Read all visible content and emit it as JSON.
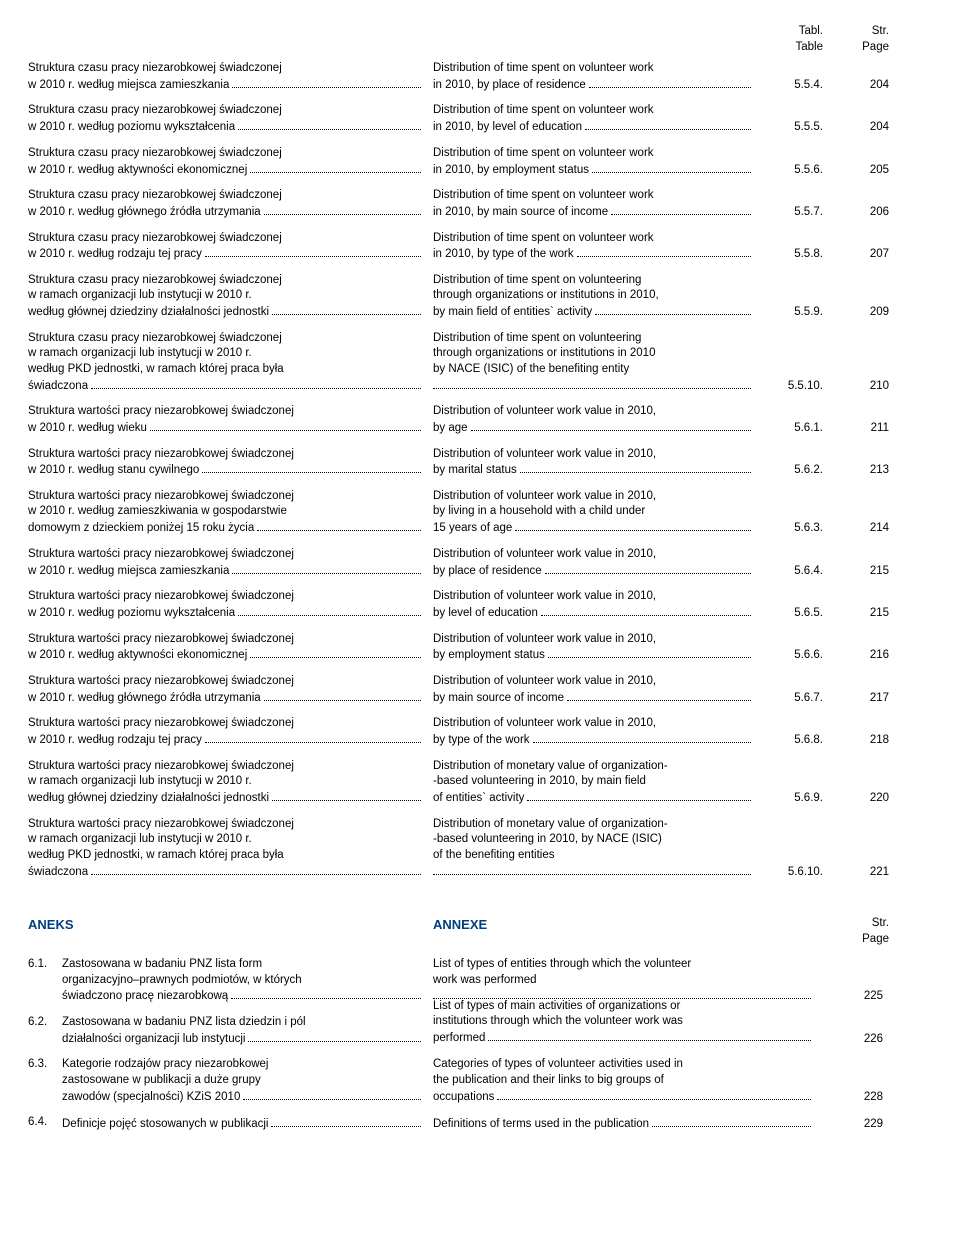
{
  "header": {
    "tabl_top": "Tabl.",
    "tabl_bot": "Table",
    "str_top": "Str.",
    "str_bot": "Page"
  },
  "rows": [
    {
      "left": [
        "Struktura czasu pracy niezarobkowej świadczonej",
        "w 2010 r. według miejsca zamieszkania"
      ],
      "right": [
        "Distribution of time spent on volunteer work",
        "in 2010, by place of residence"
      ],
      "tabl": "5.5.4.",
      "page": "204"
    },
    {
      "left": [
        "Struktura czasu pracy niezarobkowej świadczonej",
        "w 2010 r. według poziomu wykształcenia"
      ],
      "right": [
        "Distribution of time spent on volunteer work",
        "in 2010, by level of education"
      ],
      "tabl": "5.5.5.",
      "page": "204"
    },
    {
      "left": [
        "Struktura czasu pracy niezarobkowej świadczonej",
        "w 2010 r. według aktywności ekonomicznej"
      ],
      "right": [
        "Distribution of time spent on volunteer work",
        "in 2010, by employment status"
      ],
      "tabl": "5.5.6.",
      "page": "205"
    },
    {
      "left": [
        "Struktura czasu pracy niezarobkowej świadczonej",
        "w 2010 r. według głównego źródła utrzymania"
      ],
      "right": [
        "Distribution of time spent on volunteer work",
        "in 2010, by main source of income"
      ],
      "tabl": "5.5.7.",
      "page": "206"
    },
    {
      "left": [
        "Struktura czasu pracy niezarobkowej świadczonej",
        "w 2010 r. według rodzaju tej pracy"
      ],
      "right": [
        "Distribution of time spent on volunteer work",
        "in 2010, by type of the work"
      ],
      "tabl": "5.5.8.",
      "page": "207"
    },
    {
      "left": [
        "Struktura czasu pracy niezarobkowej świadczonej",
        "w ramach organizacji lub instytucji w 2010 r.",
        "według głównej dziedziny działalności jednostki"
      ],
      "right": [
        "Distribution of time spent on volunteering",
        "through organizations or institutions in 2010,",
        "by main field of entities` activity"
      ],
      "tabl": "5.5.9.",
      "page": "209"
    },
    {
      "left": [
        "Struktura czasu pracy niezarobkowej świadczonej",
        "w ramach organizacji lub instytucji w 2010 r.",
        "według PKD jednostki, w ramach której praca była",
        "świadczona"
      ],
      "right": [
        "Distribution of time spent on volunteering",
        "through organizations or institutions in 2010",
        "by NACE (ISIC) of the benefiting entity",
        ""
      ],
      "tabl": "5.5.10.",
      "page": "210"
    },
    {
      "left": [
        "Struktura wartości pracy niezarobkowej świadczonej",
        "w 2010 r. według wieku"
      ],
      "right": [
        "Distribution of volunteer work value in 2010,",
        "by age"
      ],
      "tabl": "5.6.1.",
      "page": "211"
    },
    {
      "left": [
        "Struktura wartości pracy niezarobkowej świadczonej",
        "w 2010 r. według stanu cywilnego"
      ],
      "right": [
        "Distribution of volunteer work value in 2010,",
        "by marital status"
      ],
      "tabl": "5.6.2.",
      "page": "213"
    },
    {
      "left": [
        "Struktura wartości pracy niezarobkowej świadczonej",
        "w 2010 r. według zamieszkiwania w gospodarstwie",
        "domowym z dzieckiem poniżej 15 roku życia"
      ],
      "right": [
        "Distribution of volunteer work value in 2010,",
        "by living in a household with a child under",
        "15 years of age"
      ],
      "tabl": "5.6.3.",
      "page": "214"
    },
    {
      "left": [
        "Struktura wartości pracy niezarobkowej świadczonej",
        "w 2010 r. według miejsca zamieszkania"
      ],
      "right": [
        "Distribution of volunteer work value in 2010,",
        "by place of residence"
      ],
      "tabl": "5.6.4.",
      "page": "215"
    },
    {
      "left": [
        "Struktura wartości pracy niezarobkowej świadczonej",
        "w 2010 r. według poziomu wykształcenia"
      ],
      "right": [
        "Distribution of volunteer work value in 2010,",
        "by level of education"
      ],
      "tabl": "5.6.5.",
      "page": "215"
    },
    {
      "left": [
        "Struktura wartości pracy niezarobkowej świadczonej",
        "w 2010 r. według aktywności ekonomicznej"
      ],
      "right": [
        "Distribution of volunteer work value in 2010,",
        "by employment status"
      ],
      "tabl": "5.6.6.",
      "page": "216"
    },
    {
      "left": [
        "Struktura wartości pracy niezarobkowej świadczonej",
        "w 2010 r. według głównego źródła utrzymania"
      ],
      "right": [
        "Distribution of volunteer work value in 2010,",
        "by main source of income"
      ],
      "tabl": "5.6.7.",
      "page": "217"
    },
    {
      "left": [
        "Struktura wartości pracy niezarobkowej świadczonej",
        "w 2010 r. według rodzaju tej pracy"
      ],
      "right": [
        "Distribution of volunteer work value in 2010,",
        "by type of the work"
      ],
      "tabl": "5.6.8.",
      "page": "218"
    },
    {
      "left": [
        "Struktura wartości pracy niezarobkowej świadczonej",
        "w ramach organizacji lub instytucji w 2010 r.",
        "według głównej dziedziny działalności jednostki"
      ],
      "right": [
        "Distribution of monetary value of organization-",
        "-based volunteering in 2010, by main field",
        "of entities` activity"
      ],
      "tabl": "5.6.9.",
      "page": "220"
    },
    {
      "left": [
        "Struktura wartości pracy niezarobkowej świadczonej",
        "w ramach organizacji lub instytucji w 2010 r.",
        "według PKD jednostki, w ramach której praca była",
        "świadczona"
      ],
      "right": [
        "Distribution of monetary value of organization-",
        "-based volunteering in 2010, by NACE (ISIC)",
        "of the benefiting entities",
        ""
      ],
      "tabl": "5.6.10.",
      "page": "221"
    }
  ],
  "aneks_pl": "ANEKS",
  "aneks_en": "ANNEXE",
  "annex_header": {
    "str_top": "Str.",
    "str_bot": "Page"
  },
  "annex": [
    {
      "num": "6.1.",
      "left": [
        "Zastosowana w badaniu PNZ lista form",
        "organizacyjno–prawnych podmiotów, w których",
        "świadczono pracę niezarobkową"
      ],
      "right": [
        "List of types of entities through which the volunteer",
        "work was performed",
        ""
      ],
      "page": "225"
    },
    {
      "num": "6.2.",
      "left": [
        "Zastosowana w badaniu PNZ lista dziedzin i pól",
        "działalności organizacji lub instytucji"
      ],
      "right": [
        "List of types of main activities of organizations or",
        "institutions through which the volunteer work was",
        "performed"
      ],
      "right_offset": true,
      "page": "226"
    },
    {
      "num": "6.3.",
      "left": [
        "Kategorie rodzajów pracy niezarobkowej",
        "zastosowane w publikacji a duże grupy",
        "zawodów (specjalności) KZiS 2010"
      ],
      "right": [
        "Categories of types of volunteer activities used in",
        "the publication and their links to big groups of",
        "occupations"
      ],
      "page": "228"
    },
    {
      "num": "6.4.",
      "left": [
        "Definicje pojęć stosowanych w publikacji"
      ],
      "right": [
        "Definitions of terms used in the publication"
      ],
      "page": "229"
    }
  ]
}
